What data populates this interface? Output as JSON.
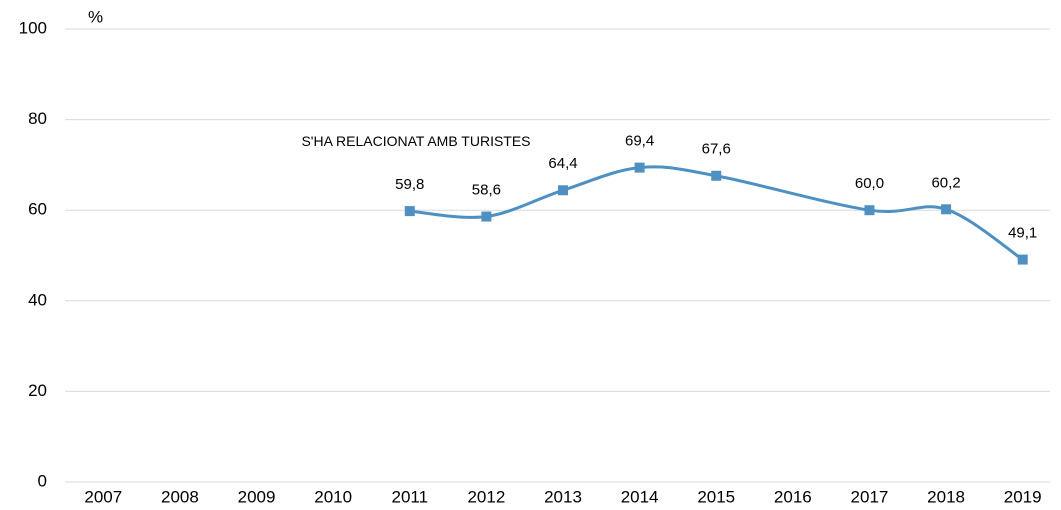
{
  "chart_data": {
    "type": "line",
    "y_label": "%",
    "x": [
      2011,
      2012,
      2013,
      2014,
      2015,
      2017,
      2018,
      2019
    ],
    "series": [
      {
        "name": "S'HA RELACIONAT AMB TURISTES",
        "color": "#4f90c2",
        "values": [
          59.8,
          58.6,
          64.4,
          69.4,
          67.6,
          60.0,
          60.2,
          49.1
        ],
        "value_labels": [
          "59,8",
          "58,6",
          "64,4",
          "69,4",
          "67,6",
          "60,0",
          "60,2",
          "49,1"
        ]
      }
    ],
    "xlim": [
      2006.5,
      2019.5
    ],
    "xticks": [
      2007,
      2008,
      2009,
      2010,
      2011,
      2012,
      2013,
      2014,
      2015,
      2016,
      2017,
      2018,
      2019
    ],
    "ylim": [
      0,
      100
    ],
    "yticks": [
      0,
      20,
      40,
      60,
      80,
      100
    ],
    "grid": true
  }
}
